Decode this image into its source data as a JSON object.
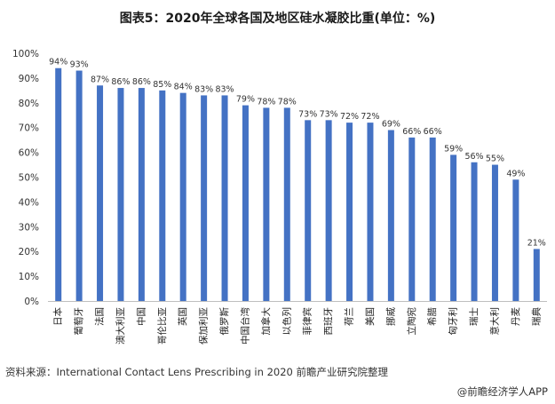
{
  "title": "图表5：2020年全球各国及地区硅水凝胶比重(单位：%)",
  "source": "资料来源：International Contact Lens Prescribing in 2020 前瞻产业研究院整理",
  "app_credit": "@前瞻经济学人APP",
  "colors": {
    "bar": "#4472C4"
  },
  "chart_data": {
    "type": "bar",
    "title": "图表5：2020年全球各国及地区硅水凝胶比重(单位：%)",
    "categories": [
      "日本",
      "葡萄牙",
      "法国",
      "澳大利亚",
      "中国",
      "哥伦比亚",
      "英国",
      "保加利亚",
      "俄罗斯",
      "中国台湾",
      "加拿大",
      "以色列",
      "菲律宾",
      "西班牙",
      "荷兰",
      "美国",
      "挪威",
      "立陶宛",
      "希腊",
      "匈牙利",
      "瑞士",
      "意大利",
      "丹麦",
      "瑞典"
    ],
    "values": [
      94,
      93,
      87,
      86,
      86,
      85,
      84,
      83,
      83,
      79,
      78,
      78,
      73,
      73,
      72,
      72,
      69,
      66,
      66,
      59,
      56,
      55,
      49,
      21
    ],
    "data_labels": [
      "94%",
      "93%",
      "87%",
      "86%",
      "86%",
      "85%",
      "84%",
      "83%",
      "83%",
      "79%",
      "78%",
      "78%",
      "73%",
      "73%",
      "72%",
      "72%",
      "69%",
      "66%",
      "66%",
      "59%",
      "56%",
      "55%",
      "49%",
      "21%"
    ],
    "y_ticks": [
      "0%",
      "10%",
      "20%",
      "30%",
      "40%",
      "50%",
      "60%",
      "70%",
      "80%",
      "90%",
      "100%"
    ],
    "ylim": [
      0,
      100
    ],
    "xlabel": "",
    "ylabel": "",
    "grid": false
  }
}
